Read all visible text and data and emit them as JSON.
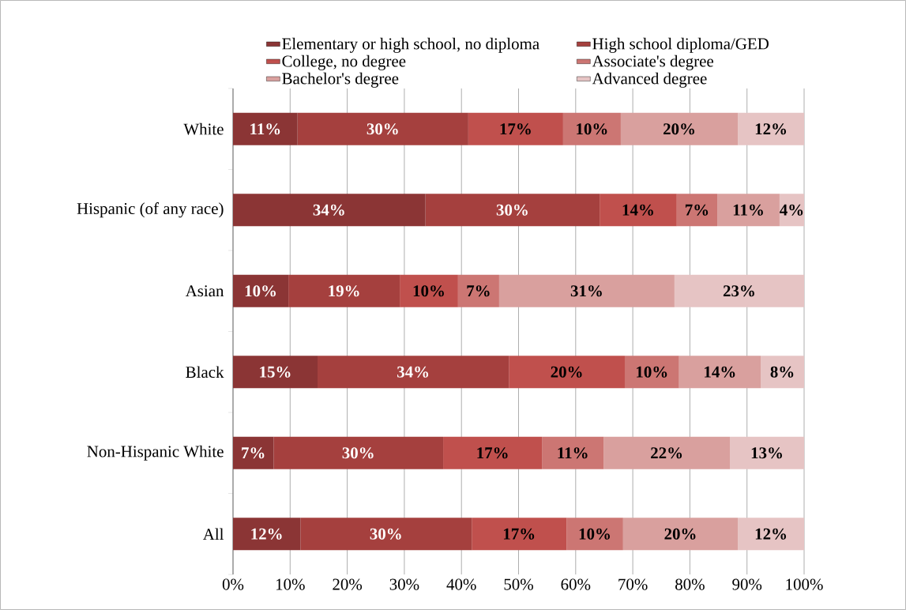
{
  "chart_data": {
    "type": "bar",
    "orientation": "horizontal",
    "stacked": true,
    "legend": "top",
    "grid": "x",
    "categories": [
      "White",
      "Hispanic (of any race)",
      "Asian",
      "Black",
      "Non-Hispanic White",
      "All"
    ],
    "series": [
      {
        "name": "Elementary or high school, no diploma",
        "color": "#8b3535",
        "values": [
          11.3,
          33.7,
          9.7,
          14.8,
          7.1,
          11.8
        ],
        "value_labels": [
          "11%",
          "34%",
          "10%",
          "15%",
          "7%",
          "12%"
        ]
      },
      {
        "name": "High school diploma/GED",
        "color": "#a5403e",
        "values": [
          29.9,
          30.5,
          19.5,
          33.5,
          29.7,
          30.0
        ],
        "value_labels": [
          "30%",
          "30%",
          "19%",
          "34%",
          "30%",
          "30%"
        ]
      },
      {
        "name": "College, no degree",
        "color": "#c0504d",
        "values": [
          16.6,
          13.5,
          10.2,
          20.3,
          17.3,
          16.6
        ],
        "value_labels": [
          "17%",
          "14%",
          "10%",
          "20%",
          "17%",
          "17%"
        ]
      },
      {
        "name": "Associate's degree",
        "color": "#cc7673",
        "values": [
          10.1,
          7.1,
          7.2,
          9.5,
          10.8,
          9.9
        ],
        "value_labels": [
          "10%",
          "7%",
          "7%",
          "10%",
          "11%",
          "10%"
        ]
      },
      {
        "name": "Bachelor's degree",
        "color": "#d9a09e",
        "values": [
          20.5,
          10.9,
          30.7,
          14.3,
          22.1,
          20.1
        ],
        "value_labels": [
          "20%",
          "11%",
          "31%",
          "14%",
          "22%",
          "20%"
        ]
      },
      {
        "name": "Advanced degree",
        "color": "#e6c4c4",
        "values": [
          11.6,
          4.3,
          22.7,
          7.6,
          13.0,
          11.6
        ],
        "value_labels": [
          "12%",
          "4%",
          "23%",
          "8%",
          "13%",
          "12%"
        ]
      }
    ],
    "xlim": [
      0,
      100
    ],
    "xticks": [
      {
        "value": 0,
        "label": "0%"
      },
      {
        "value": 10,
        "label": "10%"
      },
      {
        "value": 20,
        "label": "20%"
      },
      {
        "value": 30,
        "label": "30%"
      },
      {
        "value": 40,
        "label": "40%"
      },
      {
        "value": 50,
        "label": "50%"
      },
      {
        "value": 60,
        "label": "60%"
      },
      {
        "value": 70,
        "label": "70%"
      },
      {
        "value": 80,
        "label": "80%"
      },
      {
        "value": 90,
        "label": "90%"
      },
      {
        "value": 100,
        "label": "100%"
      }
    ]
  }
}
